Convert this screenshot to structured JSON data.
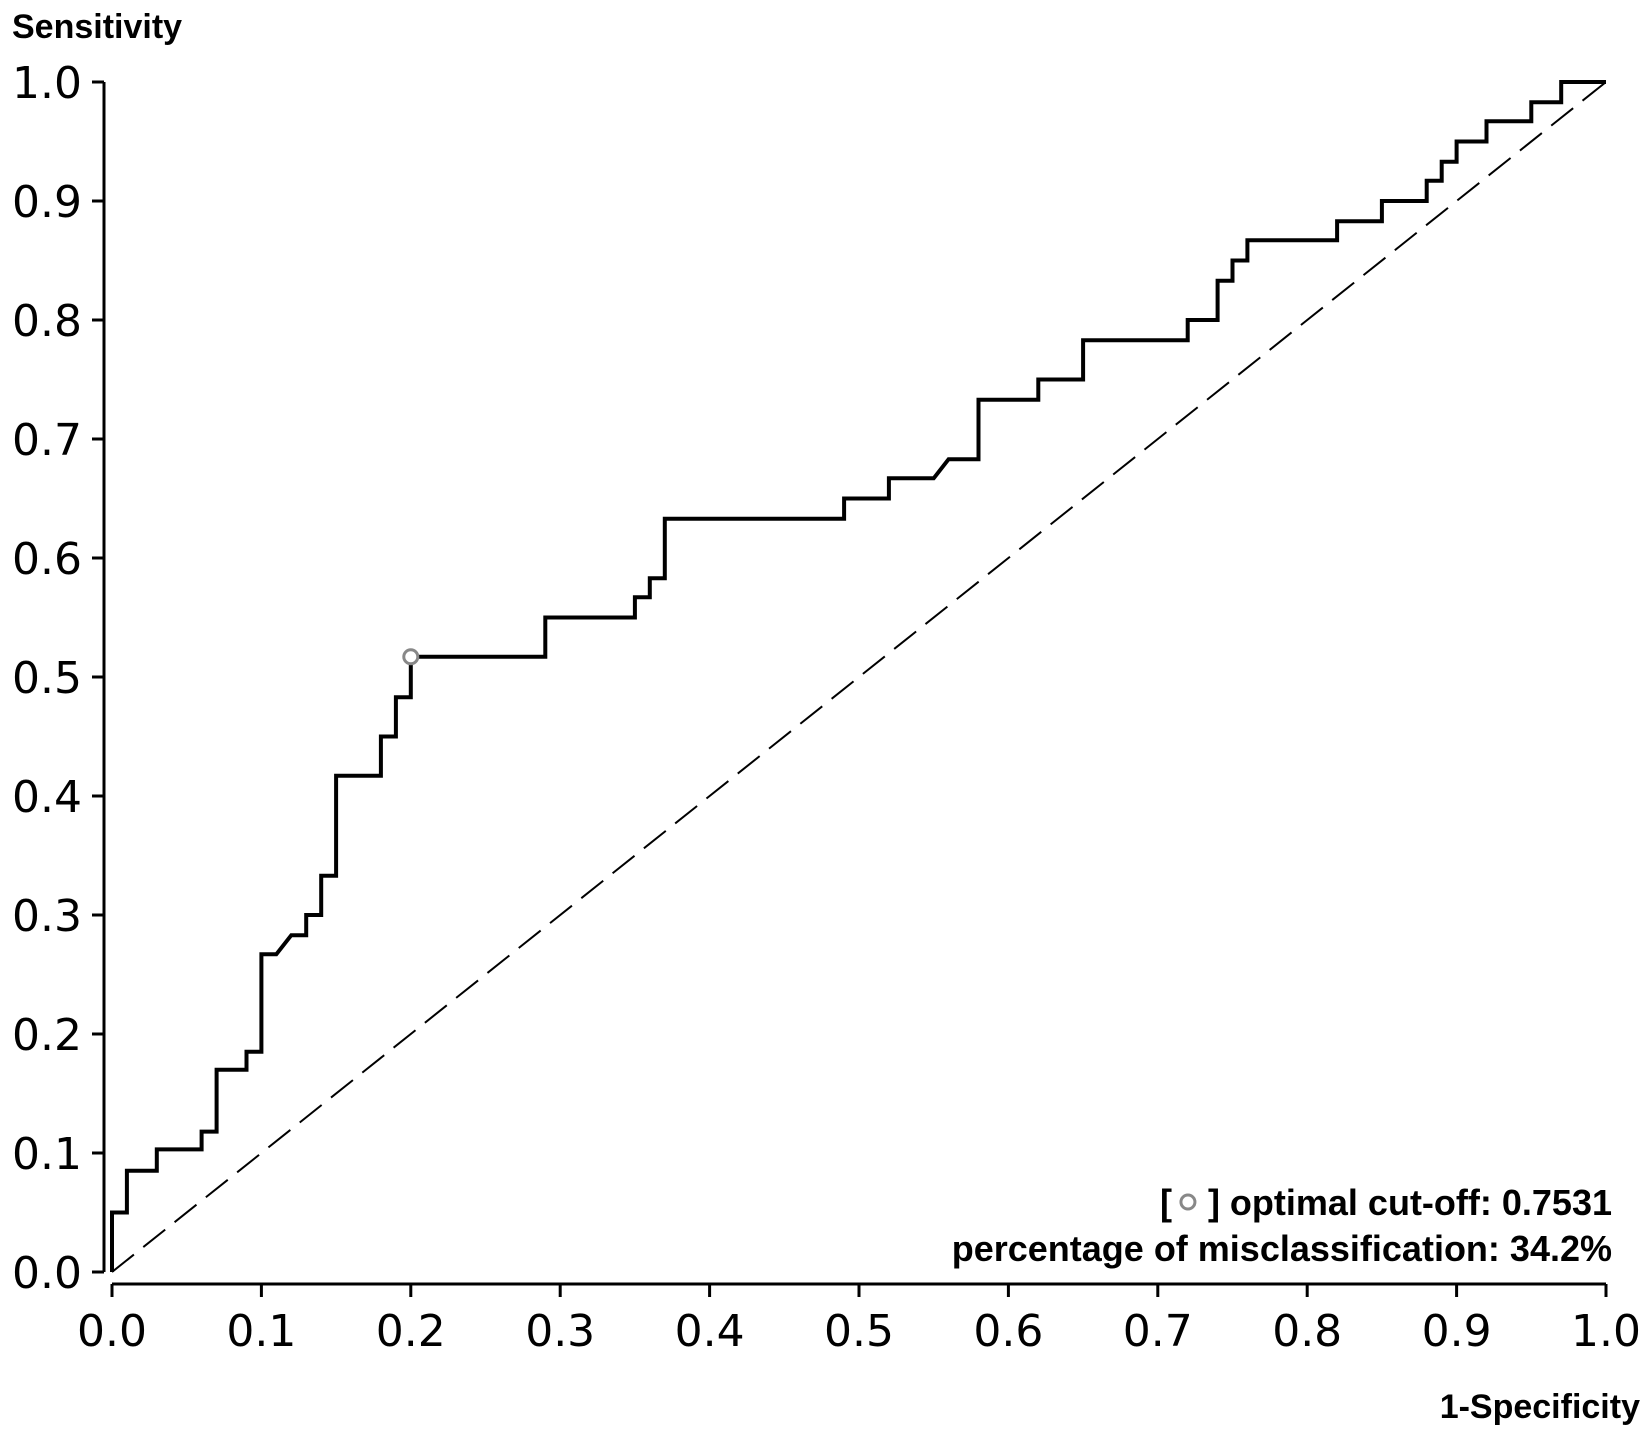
{
  "chart_data": {
    "type": "line",
    "xlabel": "1-Specificity",
    "ylabel": "Sensitivity",
    "xlim": [
      0,
      1
    ],
    "ylim": [
      0,
      1
    ],
    "x_ticks": [
      "0.0",
      "0.1",
      "0.2",
      "0.3",
      "0.4",
      "0.5",
      "0.6",
      "0.7",
      "0.8",
      "0.9",
      "1.0"
    ],
    "y_ticks": [
      "0.0",
      "0.1",
      "0.2",
      "0.3",
      "0.4",
      "0.5",
      "0.6",
      "0.7",
      "0.8",
      "0.9",
      "1.0"
    ],
    "grid": false,
    "series": [
      {
        "style": "solid",
        "color": "#000000",
        "x": [
          0.0,
          0.0,
          0.01,
          0.01,
          0.03,
          0.03,
          0.06,
          0.06,
          0.07,
          0.07,
          0.09,
          0.09,
          0.1,
          0.1,
          0.11,
          0.12,
          0.13,
          0.13,
          0.14,
          0.14,
          0.15,
          0.15,
          0.18,
          0.18,
          0.19,
          0.19,
          0.2,
          0.2,
          0.29,
          0.29,
          0.35,
          0.35,
          0.36,
          0.36,
          0.37,
          0.37,
          0.49,
          0.49,
          0.52,
          0.52,
          0.55,
          0.56,
          0.58,
          0.58,
          0.62,
          0.62,
          0.65,
          0.65,
          0.72,
          0.72,
          0.74,
          0.74,
          0.75,
          0.75,
          0.76,
          0.76,
          0.82,
          0.82,
          0.85,
          0.85,
          0.88,
          0.88,
          0.89,
          0.89,
          0.9,
          0.9,
          0.92,
          0.92,
          0.95,
          0.95,
          0.97,
          0.97,
          1.0
        ],
        "y": [
          0.0,
          0.05,
          0.05,
          0.085,
          0.085,
          0.103,
          0.103,
          0.118,
          0.118,
          0.17,
          0.17,
          0.185,
          0.185,
          0.267,
          0.267,
          0.283,
          0.283,
          0.3,
          0.3,
          0.333,
          0.333,
          0.417,
          0.417,
          0.45,
          0.45,
          0.483,
          0.483,
          0.517,
          0.517,
          0.55,
          0.55,
          0.567,
          0.567,
          0.583,
          0.583,
          0.633,
          0.633,
          0.65,
          0.65,
          0.667,
          0.667,
          0.683,
          0.683,
          0.733,
          0.733,
          0.75,
          0.75,
          0.783,
          0.783,
          0.8,
          0.8,
          0.833,
          0.833,
          0.85,
          0.85,
          0.867,
          0.867,
          0.883,
          0.883,
          0.9,
          0.9,
          0.917,
          0.917,
          0.933,
          0.933,
          0.95,
          0.95,
          0.967,
          0.967,
          0.983,
          0.983,
          1.0,
          1.0
        ]
      },
      {
        "style": "dashed",
        "color": "#000000",
        "x": [
          0,
          1
        ],
        "y": [
          0,
          1
        ]
      }
    ],
    "marker": {
      "x": 0.2,
      "y": 0.517,
      "shape": "open-circle",
      "color": "#888888"
    },
    "legend_lines": [
      {
        "prefix": "[",
        "suffix": "] optimal cut-off: ",
        "value": "0.7531"
      },
      {
        "prefix": "",
        "suffix": "percentage of misclassification: ",
        "value": "34.2%"
      }
    ],
    "legend_position": "bottom-right"
  }
}
